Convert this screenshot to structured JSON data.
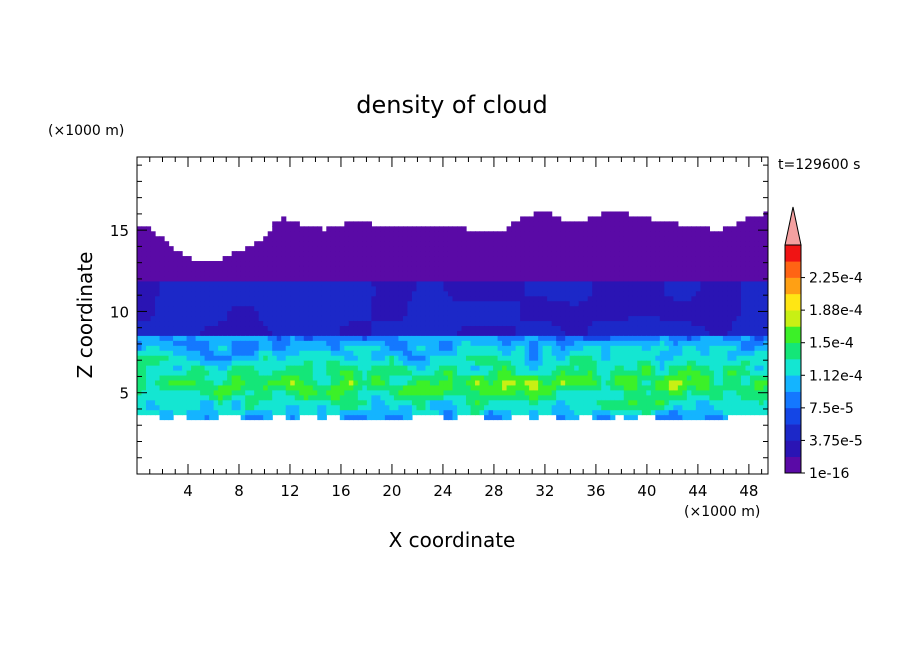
{
  "chart_data": {
    "type": "heatmap",
    "title": "density of cloud",
    "xlabel": "X coordinate",
    "ylabel": "Z coordinate",
    "x_unit": "(×1000 m)",
    "y_unit": "(×1000 m)",
    "time_label": "t=129600 s",
    "xlim": [
      0,
      49.5
    ],
    "ylim": [
      0,
      19.5
    ],
    "x_ticks": [
      4,
      8,
      12,
      16,
      20,
      24,
      28,
      32,
      36,
      40,
      44,
      48
    ],
    "y_ticks": [
      5,
      10,
      15
    ],
    "grid": false,
    "colorbar": {
      "labels": [
        "1e-16",
        "3.75e-5",
        "7.5e-5",
        "1.12e-4",
        "1.5e-4",
        "1.88e-4",
        "2.25e-4"
      ],
      "levels": [
        1e-16,
        1.875e-05,
        3.75e-05,
        5.625e-05,
        7.5e-05,
        9.375e-05,
        0.0001125,
        0.00013125,
        0.00015,
        0.00016875,
        0.0001875,
        0.00020625,
        0.000225,
        0.00024375
      ],
      "colors": [
        "#5a0aa6",
        "#2a14b4",
        "#1c28c8",
        "#1446e6",
        "#1478ff",
        "#14b4ff",
        "#14e6d2",
        "#14e678",
        "#3cf028",
        "#c8f014",
        "#ffe614",
        "#ffa014",
        "#ff6414",
        "#f01414"
      ],
      "extend_color": "#f4a0a0",
      "extend": "max"
    },
    "field_description": {
      "cloud_top_z": [
        13,
        17
      ],
      "dense_layer_z": [
        4.5,
        6.5
      ],
      "cloud_base_z": 3.3
    }
  }
}
